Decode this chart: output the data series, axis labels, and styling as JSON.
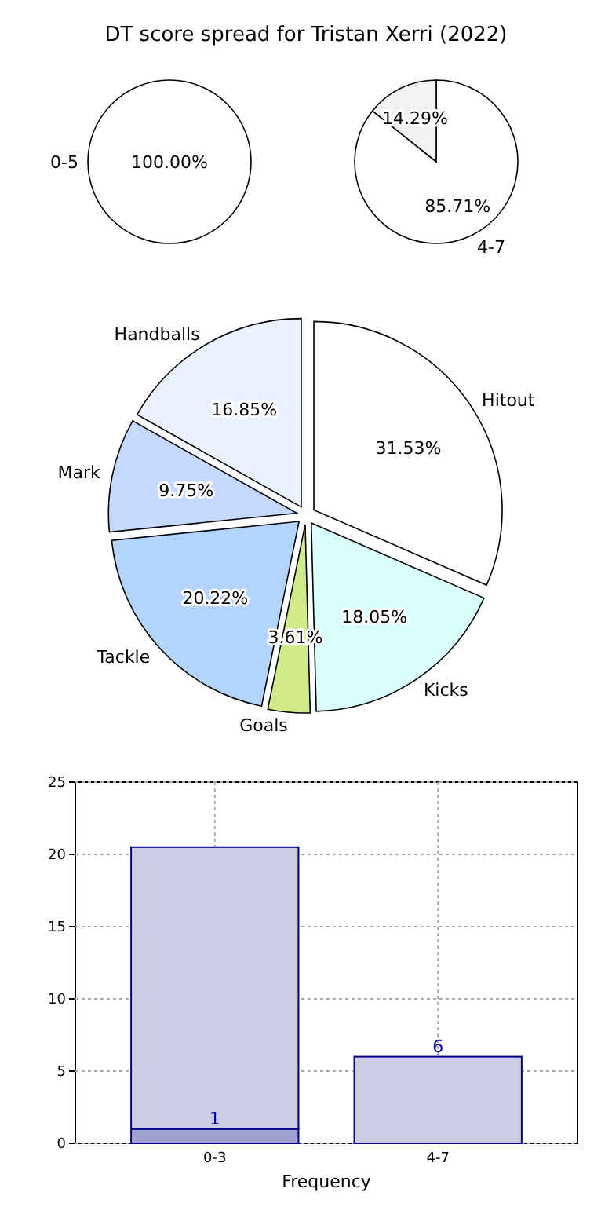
{
  "chart_data": [
    {
      "type": "pie",
      "title": "DT score spread for Tristan Xerri (2022)",
      "categories": [
        "0-5"
      ],
      "values": [
        100
      ],
      "colors": [
        "#ffffff"
      ],
      "value_labels": [
        "100.00%"
      ]
    },
    {
      "type": "pie",
      "categories": [
        "4-7",
        null
      ],
      "values": [
        85.71,
        14.29
      ],
      "colors": [
        "#ffffff",
        "#f2f2f2"
      ],
      "value_labels": [
        "85.71%",
        "14.29%"
      ]
    },
    {
      "type": "pie",
      "categories": [
        "Hitout",
        "Kicks",
        "Goals",
        "Tackle",
        "Mark",
        "Handballs"
      ],
      "values": [
        31.53,
        18.05,
        3.61,
        20.22,
        9.75,
        16.85
      ],
      "colors": [
        "#ffffff",
        "#d9ffff",
        "#d0eb8a",
        "#b3d4ff",
        "#c5d8ff",
        "#eaf1ff"
      ],
      "value_labels": [
        "31.53%",
        "18.05%",
        "3.61%",
        "20.22%",
        "9.75%",
        "16.85%"
      ]
    },
    {
      "type": "bar",
      "xlabel": "Frequency",
      "categories": [
        "0-3",
        "4-7"
      ],
      "ylim": [
        0,
        25
      ],
      "yticks": [
        0,
        5,
        10,
        15,
        20,
        25
      ],
      "grid": true,
      "stacked": true,
      "series": [
        {
          "color": "#a0a0d0",
          "values": [
            1,
            null
          ],
          "value_labels": [
            "1",
            null
          ]
        },
        {
          "color": "#cccce4",
          "values": [
            19.5,
            6
          ],
          "value_labels": [
            null,
            "6"
          ]
        }
      ]
    }
  ]
}
